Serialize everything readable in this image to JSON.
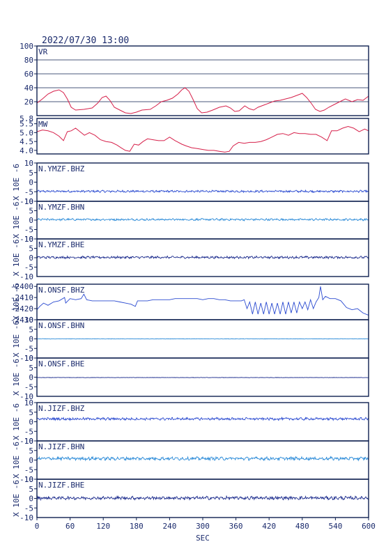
{
  "title": "2022/07/30 13:00",
  "colors": {
    "frame": "#0d1f4f",
    "text": "#1a2a6c",
    "red": "#d6204a",
    "blue_dark": "#1a2a8c",
    "blue_mid": "#2a4ad0",
    "blue_light": "#2a8ad8"
  },
  "chart_data": {
    "type": "line",
    "x_axis": {
      "label": "SEC",
      "range": [
        0,
        600
      ],
      "ticks": [
        "0",
        "60",
        "120",
        "180",
        "240",
        "300",
        "360",
        "420",
        "480",
        "540",
        "600"
      ]
    },
    "panels": [
      {
        "label": "VR",
        "ylim": [
          0,
          100
        ],
        "ticks": [
          "20",
          "40",
          "60",
          "80",
          "100"
        ],
        "grid": true,
        "color": "red",
        "kind": "vr",
        "y_axis_label": ""
      },
      {
        "label": "MW",
        "ylim": [
          3.8,
          5.8
        ],
        "ticks": [
          "4.0",
          "4.5",
          "5.0",
          "5.5"
        ],
        "top_tick": "5.8",
        "grid": false,
        "color": "red",
        "kind": "mw",
        "y_axis_label": ""
      },
      {
        "label": "N.YMZF.BHZ",
        "ylim": [
          -10,
          10
        ],
        "ticks": [
          "-5",
          "0",
          "5",
          "10"
        ],
        "bottom_tick": "-10",
        "grid": false,
        "color": "blue_mid",
        "kind": "noise",
        "offset": -4.8,
        "amp": 0.45,
        "y_axis_label": "X 10E -6"
      },
      {
        "label": "N.YMZF.BHN",
        "ylim": [
          -10,
          10
        ],
        "ticks": [
          "-5",
          "0",
          "5",
          "10"
        ],
        "bottom_tick": "-10",
        "grid": false,
        "color": "blue_light",
        "kind": "noise",
        "offset": 0.3,
        "amp": 0.45,
        "y_axis_label": "X 10E -6"
      },
      {
        "label": "N.YMZF.BHE",
        "ylim": [
          -10,
          10
        ],
        "ticks": [
          "-5",
          "0",
          "5",
          "10"
        ],
        "bottom_tick": "-10",
        "grid": false,
        "color": "blue_dark",
        "kind": "noise",
        "offset": 0.2,
        "amp": 0.5,
        "y_axis_label": "X 10E -6"
      },
      {
        "label": "N.ONSF.BHZ",
        "ylim": [
          -2430,
          -2398
        ],
        "ticks": [
          "-2430",
          "-2420",
          "-2410",
          "-2400"
        ],
        "grid": false,
        "color": "blue_mid",
        "kind": "onsfz",
        "y_axis_label": "X 10E -6"
      },
      {
        "label": "N.ONSF.BHN",
        "ylim": [
          -10,
          10
        ],
        "ticks": [
          "-5",
          "0",
          "5",
          "10"
        ],
        "bottom_tick": "-10",
        "grid": false,
        "color": "blue_light",
        "kind": "flat",
        "offset": 0.0,
        "amp": 0.08,
        "y_axis_label": "X 10E -6"
      },
      {
        "label": "N.ONSF.BHE",
        "ylim": [
          -10,
          10
        ],
        "ticks": [
          "-5",
          "0",
          "5",
          "10"
        ],
        "bottom_tick": "-10",
        "grid": false,
        "color": "blue_dark",
        "kind": "flat",
        "offset": -0.2,
        "amp": 0.08,
        "y_axis_label": "X 10E -6"
      },
      {
        "label": "N.JIZF.BHZ",
        "ylim": [
          -10,
          10
        ],
        "ticks": [
          "-5",
          "0",
          "5",
          "10"
        ],
        "bottom_tick": "-10",
        "grid": false,
        "color": "blue_mid",
        "kind": "noise",
        "offset": 1.5,
        "amp": 0.55,
        "y_axis_label": "X 10E -6"
      },
      {
        "label": "N.JIZF.BHN",
        "ylim": [
          -10,
          10
        ],
        "ticks": [
          "-5",
          "0",
          "5",
          "10"
        ],
        "bottom_tick": "-10",
        "grid": false,
        "color": "blue_light",
        "kind": "noise",
        "offset": 0.8,
        "amp": 0.7,
        "y_axis_label": "X 10E -6"
      },
      {
        "label": "N.JIZF.BHE",
        "ylim": [
          -10,
          10
        ],
        "ticks": [
          "-5",
          "0",
          "5",
          "10"
        ],
        "bottom_tick": "-10",
        "grid": false,
        "color": "blue_dark",
        "kind": "noise",
        "offset": 0.2,
        "amp": 0.7,
        "y_axis_label": "X 10E -6"
      }
    ],
    "vr_series": [
      [
        0,
        18
      ],
      [
        10,
        24
      ],
      [
        20,
        31
      ],
      [
        30,
        35
      ],
      [
        40,
        37
      ],
      [
        48,
        33
      ],
      [
        55,
        24
      ],
      [
        62,
        12
      ],
      [
        70,
        8
      ],
      [
        85,
        9
      ],
      [
        100,
        11
      ],
      [
        110,
        18
      ],
      [
        118,
        26
      ],
      [
        125,
        28
      ],
      [
        132,
        22
      ],
      [
        140,
        12
      ],
      [
        150,
        8
      ],
      [
        160,
        4
      ],
      [
        170,
        3
      ],
      [
        180,
        5
      ],
      [
        190,
        8
      ],
      [
        205,
        9
      ],
      [
        215,
        14
      ],
      [
        225,
        20
      ],
      [
        235,
        22
      ],
      [
        245,
        25
      ],
      [
        255,
        31
      ],
      [
        262,
        37
      ],
      [
        268,
        40
      ],
      [
        275,
        35
      ],
      [
        282,
        24
      ],
      [
        290,
        10
      ],
      [
        298,
        4
      ],
      [
        308,
        5
      ],
      [
        318,
        8
      ],
      [
        330,
        12
      ],
      [
        342,
        14
      ],
      [
        350,
        11
      ],
      [
        358,
        6
      ],
      [
        366,
        7
      ],
      [
        376,
        14
      ],
      [
        384,
        10
      ],
      [
        392,
        8
      ],
      [
        400,
        12
      ],
      [
        410,
        15
      ],
      [
        420,
        18
      ],
      [
        430,
        21
      ],
      [
        440,
        22
      ],
      [
        450,
        24
      ],
      [
        460,
        26
      ],
      [
        470,
        29
      ],
      [
        480,
        32
      ],
      [
        488,
        26
      ],
      [
        496,
        18
      ],
      [
        504,
        9
      ],
      [
        512,
        6
      ],
      [
        520,
        8
      ],
      [
        528,
        12
      ],
      [
        538,
        16
      ],
      [
        548,
        20
      ],
      [
        558,
        24
      ],
      [
        570,
        20
      ],
      [
        580,
        23
      ],
      [
        590,
        22
      ],
      [
        600,
        28
      ]
    ],
    "mw_series": [
      [
        0,
        5.05
      ],
      [
        10,
        5.15
      ],
      [
        20,
        5.1
      ],
      [
        30,
        5.0
      ],
      [
        40,
        4.8
      ],
      [
        48,
        4.55
      ],
      [
        55,
        5.05
      ],
      [
        62,
        5.1
      ],
      [
        70,
        5.25
      ],
      [
        78,
        5.05
      ],
      [
        86,
        4.85
      ],
      [
        95,
        5.0
      ],
      [
        105,
        4.85
      ],
      [
        115,
        4.6
      ],
      [
        125,
        4.5
      ],
      [
        135,
        4.45
      ],
      [
        145,
        4.3
      ],
      [
        152,
        4.15
      ],
      [
        160,
        4.0
      ],
      [
        168,
        3.95
      ],
      [
        176,
        4.35
      ],
      [
        184,
        4.3
      ],
      [
        192,
        4.5
      ],
      [
        200,
        4.65
      ],
      [
        210,
        4.6
      ],
      [
        220,
        4.55
      ],
      [
        230,
        4.55
      ],
      [
        240,
        4.75
      ],
      [
        250,
        4.55
      ],
      [
        262,
        4.35
      ],
      [
        270,
        4.25
      ],
      [
        280,
        4.15
      ],
      [
        290,
        4.1
      ],
      [
        300,
        4.05
      ],
      [
        310,
        4.0
      ],
      [
        320,
        4.0
      ],
      [
        330,
        3.95
      ],
      [
        340,
        3.9
      ],
      [
        348,
        3.95
      ],
      [
        355,
        4.25
      ],
      [
        365,
        4.45
      ],
      [
        375,
        4.4
      ],
      [
        385,
        4.45
      ],
      [
        395,
        4.45
      ],
      [
        405,
        4.5
      ],
      [
        415,
        4.6
      ],
      [
        425,
        4.75
      ],
      [
        435,
        4.9
      ],
      [
        445,
        4.95
      ],
      [
        455,
        4.85
      ],
      [
        465,
        5.0
      ],
      [
        475,
        4.95
      ],
      [
        485,
        4.95
      ],
      [
        495,
        4.9
      ],
      [
        505,
        4.9
      ],
      [
        515,
        4.75
      ],
      [
        525,
        4.55
      ],
      [
        533,
        5.1
      ],
      [
        543,
        5.1
      ],
      [
        553,
        5.25
      ],
      [
        563,
        5.35
      ],
      [
        573,
        5.25
      ],
      [
        583,
        5.05
      ],
      [
        593,
        5.2
      ],
      [
        600,
        5.1
      ]
    ],
    "onsfz_series": [
      [
        0,
        -2421
      ],
      [
        5,
        -2418
      ],
      [
        12,
        -2415
      ],
      [
        20,
        -2417
      ],
      [
        30,
        -2414
      ],
      [
        40,
        -2413
      ],
      [
        50,
        -2410
      ],
      [
        52,
        -2415
      ],
      [
        60,
        -2411
      ],
      [
        70,
        -2412
      ],
      [
        80,
        -2411
      ],
      [
        85,
        -2407
      ],
      [
        90,
        -2412
      ],
      [
        100,
        -2413
      ],
      [
        110,
        -2413
      ],
      [
        120,
        -2413
      ],
      [
        130,
        -2413
      ],
      [
        140,
        -2413
      ],
      [
        150,
        -2414
      ],
      [
        160,
        -2415
      ],
      [
        170,
        -2416
      ],
      [
        178,
        -2418
      ],
      [
        182,
        -2413
      ],
      [
        190,
        -2413
      ],
      [
        200,
        -2413
      ],
      [
        210,
        -2412
      ],
      [
        220,
        -2412
      ],
      [
        230,
        -2412
      ],
      [
        240,
        -2412
      ],
      [
        250,
        -2411
      ],
      [
        260,
        -2411
      ],
      [
        270,
        -2411
      ],
      [
        280,
        -2411
      ],
      [
        290,
        -2411
      ],
      [
        300,
        -2412
      ],
      [
        310,
        -2411
      ],
      [
        320,
        -2411
      ],
      [
        330,
        -2412
      ],
      [
        340,
        -2412
      ],
      [
        350,
        -2413
      ],
      [
        360,
        -2413
      ],
      [
        370,
        -2413
      ],
      [
        375,
        -2412
      ],
      [
        380,
        -2420
      ],
      [
        385,
        -2414
      ],
      [
        390,
        -2425
      ],
      [
        395,
        -2414
      ],
      [
        400,
        -2425
      ],
      [
        405,
        -2415
      ],
      [
        410,
        -2425
      ],
      [
        415,
        -2414
      ],
      [
        420,
        -2425
      ],
      [
        425,
        -2415
      ],
      [
        430,
        -2425
      ],
      [
        435,
        -2415
      ],
      [
        440,
        -2425
      ],
      [
        445,
        -2414
      ],
      [
        450,
        -2425
      ],
      [
        455,
        -2414
      ],
      [
        460,
        -2424
      ],
      [
        465,
        -2414
      ],
      [
        470,
        -2424
      ],
      [
        475,
        -2414
      ],
      [
        480,
        -2420
      ],
      [
        485,
        -2414
      ],
      [
        490,
        -2421
      ],
      [
        495,
        -2412
      ],
      [
        500,
        -2420
      ],
      [
        505,
        -2414
      ],
      [
        510,
        -2410
      ],
      [
        513,
        -2400
      ],
      [
        517,
        -2412
      ],
      [
        522,
        -2409
      ],
      [
        530,
        -2411
      ],
      [
        540,
        -2411
      ],
      [
        550,
        -2413
      ],
      [
        560,
        -2419
      ],
      [
        570,
        -2421
      ],
      [
        580,
        -2420
      ],
      [
        590,
        -2424
      ],
      [
        600,
        -2426
      ]
    ]
  }
}
